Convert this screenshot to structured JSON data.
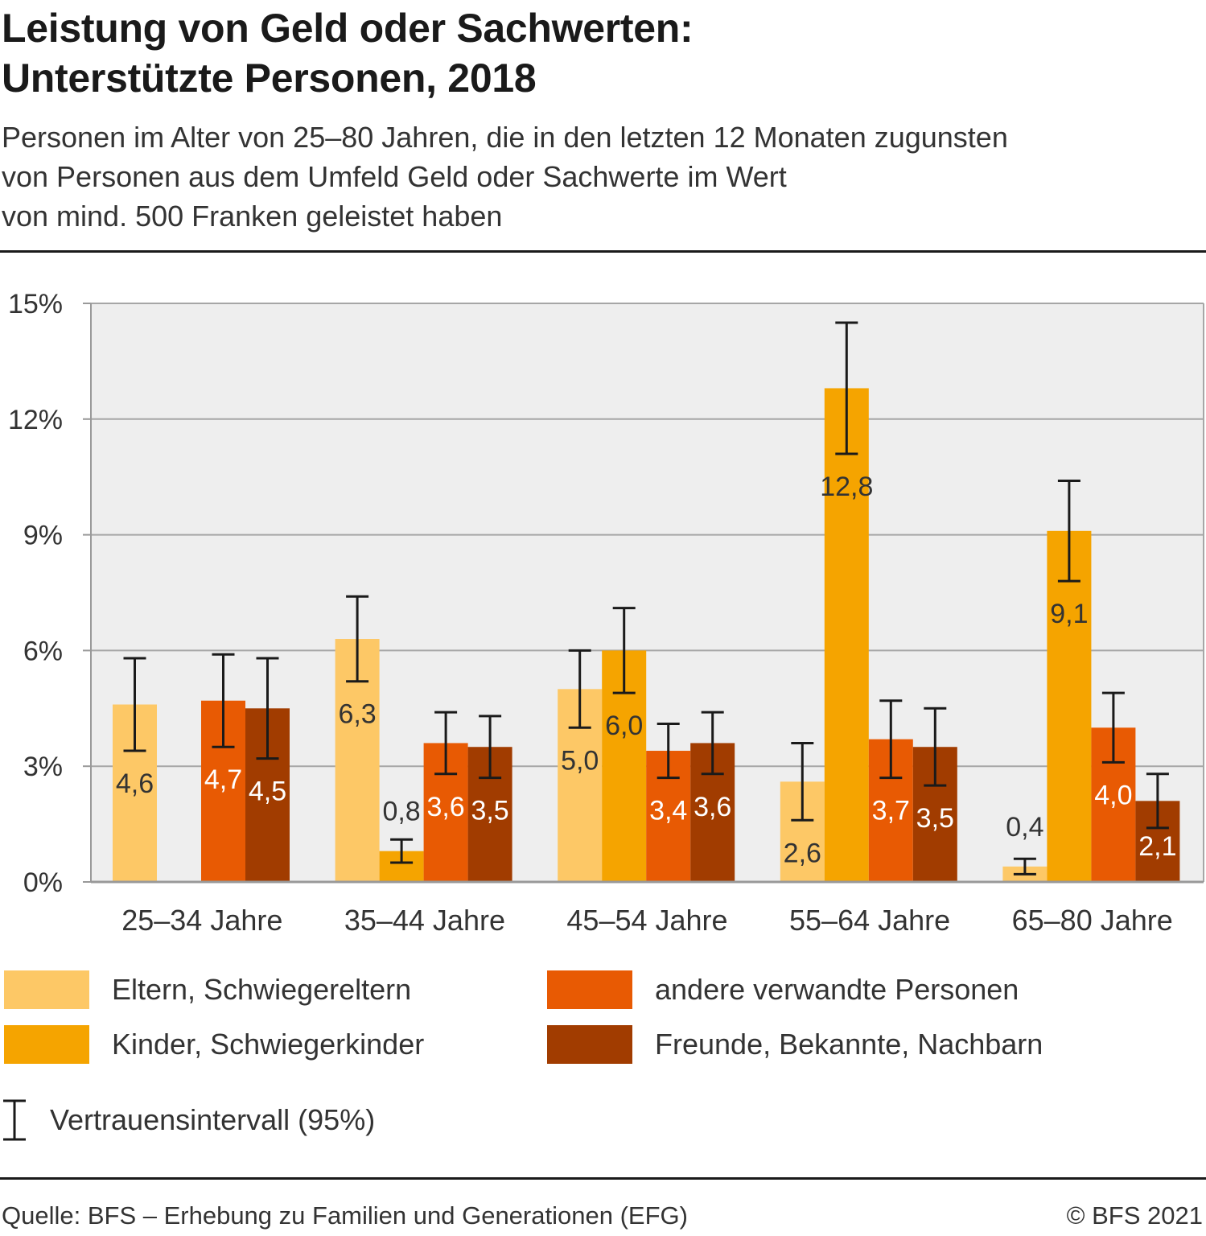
{
  "header": {
    "title_line1": "Leistung von Geld oder Sachwerten:",
    "title_line2": "Unterstützte Personen, 2018",
    "subtitle_line1": "Personen im Alter von 25–80 Jahren, die in den letzten 12 Monaten zugunsten",
    "subtitle_line2": "von Personen aus dem Umfeld Geld oder Sachwerte im Wert",
    "subtitle_line3": "von mind. 500 Franken geleistet haben"
  },
  "chart_data": {
    "type": "bar",
    "categories": [
      "25–34 Jahre",
      "35–44 Jahre",
      "45–54 Jahre",
      "55–64 Jahre",
      "65–80 Jahre"
    ],
    "y_ticks": [
      "0%",
      "3%",
      "6%",
      "9%",
      "12%",
      "15%"
    ],
    "ylim": [
      0,
      15
    ],
    "grid": true,
    "legend_position": "bottom",
    "series": [
      {
        "name": "Eltern, Schwiegereltern",
        "color": "#fdc866",
        "values": [
          4.6,
          6.3,
          5.0,
          2.6,
          0.4
        ],
        "labels": [
          "4,6",
          "6,3",
          "5,0",
          "2,6",
          "0,4"
        ],
        "ci_low": [
          3.4,
          5.2,
          4.0,
          1.6,
          0.2
        ],
        "ci_high": [
          5.8,
          7.4,
          6.0,
          3.6,
          0.6
        ]
      },
      {
        "name": "Kinder, Schwiegerkinder",
        "color": "#f5a400",
        "values": [
          null,
          0.8,
          6.0,
          12.8,
          9.1
        ],
        "labels": [
          "",
          "0,8",
          "6,0",
          "12,8",
          "9,1"
        ],
        "ci_low": [
          null,
          0.5,
          4.9,
          11.1,
          7.8
        ],
        "ci_high": [
          null,
          1.1,
          7.1,
          14.5,
          10.4
        ]
      },
      {
        "name": "andere verwandte Personen",
        "color": "#e85a03",
        "values": [
          4.7,
          3.6,
          3.4,
          3.7,
          4.0
        ],
        "labels": [
          "4,7",
          "3,6",
          "3,4",
          "3,7",
          "4,0"
        ],
        "ci_low": [
          3.5,
          2.8,
          2.7,
          2.7,
          3.1
        ],
        "ci_high": [
          5.9,
          4.4,
          4.1,
          4.7,
          4.9
        ]
      },
      {
        "name": "Freunde, Bekannte, Nachbarn",
        "color": "#a13c00",
        "values": [
          4.5,
          3.5,
          3.6,
          3.5,
          2.1
        ],
        "labels": [
          "4,5",
          "3,5",
          "3,6",
          "3,5",
          "2,1"
        ],
        "ci_low": [
          3.2,
          2.7,
          2.8,
          2.5,
          1.4
        ],
        "ci_high": [
          5.8,
          4.3,
          4.4,
          4.5,
          2.8
        ]
      }
    ],
    "ci_legend_label": "Vertrauensintervall (95%)"
  },
  "footer": {
    "source": "Quelle: BFS – Erhebung zu Familien und Generationen (EFG)",
    "copyright": "© BFS 2021"
  }
}
